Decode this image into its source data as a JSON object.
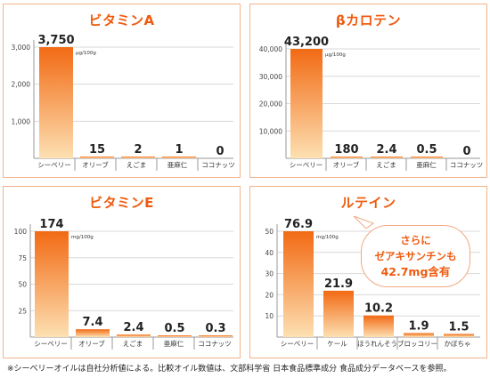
{
  "footnote": "※シーベリーオイルは自社分析値による。比較オイル数値は、文部科学省 日本食品標準成分 食品成分データベースを参照。",
  "callout": {
    "line1": "さらに",
    "line2": "ゼアキサンチンも",
    "line3": "42.7mg含有"
  },
  "colors": {
    "accent": "#f05a0e",
    "bar_top": "#f26a14",
    "bar_bottom": "#fde0b2",
    "border": "#f2b48c"
  },
  "chart_data": [
    {
      "type": "bar",
      "title": "ビタミンA",
      "unit": "μg/100g",
      "categories": [
        "シーベリー",
        "オリーブ",
        "えごま",
        "亜麻仁",
        "ココナッツ"
      ],
      "values": [
        3750,
        15,
        2,
        1,
        0
      ],
      "value_labels": [
        "3,750",
        "15",
        "2",
        "1",
        "0"
      ],
      "yticks": [
        "3,000",
        "2,000",
        "1,000"
      ],
      "ytick_values": [
        3000,
        2000,
        1000
      ],
      "ylim": [
        0,
        3000
      ]
    },
    {
      "type": "bar",
      "title": "βカロテン",
      "unit": "μg/100g",
      "categories": [
        "シーベリー",
        "オリーブ",
        "えごま",
        "亜麻仁",
        "ココナッツ"
      ],
      "values": [
        43200,
        180,
        2.4,
        0.5,
        0
      ],
      "value_labels": [
        "43,200",
        "180",
        "2.4",
        "0.5",
        "0"
      ],
      "yticks": [
        "40,000",
        "30,000",
        "20,000",
        "10,000"
      ],
      "ytick_values": [
        40000,
        30000,
        20000,
        10000
      ],
      "ylim": [
        0,
        40000
      ]
    },
    {
      "type": "bar",
      "title": "ビタミンE",
      "unit": "mg/100g",
      "categories": [
        "シーベリー",
        "オリーブ",
        "えごま",
        "亜麻仁",
        "ココナッツ"
      ],
      "values": [
        174,
        7.4,
        2.4,
        0.5,
        0.3
      ],
      "value_labels": [
        "174",
        "7.4",
        "2.4",
        "0.5",
        "0.3"
      ],
      "yticks": [
        "100",
        "75",
        "50",
        "25"
      ],
      "ytick_values": [
        100,
        75,
        50,
        25
      ],
      "ylim": [
        0,
        100
      ]
    },
    {
      "type": "bar",
      "title": "ルテイン",
      "unit": "mg/100g",
      "categories": [
        "シーベリー",
        "ケール",
        "ほうれんそう",
        "ブロッコリー",
        "かぼちゃ"
      ],
      "values": [
        76.9,
        21.9,
        10.2,
        1.9,
        1.5
      ],
      "value_labels": [
        "76.9",
        "21.9",
        "10.2",
        "1.9",
        "1.5"
      ],
      "yticks": [
        "50",
        "40",
        "30",
        "20",
        "10"
      ],
      "ytick_values": [
        50,
        40,
        30,
        20,
        10
      ],
      "ylim": [
        0,
        50
      ]
    }
  ]
}
